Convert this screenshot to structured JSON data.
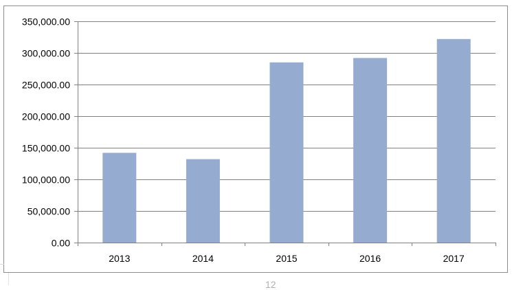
{
  "chart_data": {
    "type": "bar",
    "title": "",
    "xlabel": "",
    "ylabel": "",
    "categories": [
      "2013",
      "2014",
      "2015",
      "2016",
      "2017"
    ],
    "values": [
      142000,
      132000,
      285000,
      292000,
      322000
    ],
    "ylim": [
      0,
      350000
    ],
    "yticks": [
      0,
      50000,
      100000,
      150000,
      200000,
      250000,
      300000,
      350000
    ],
    "ytick_labels": [
      "0.00",
      "50,000.00",
      "100,000.00",
      "150,000.00",
      "200,000.00",
      "250,000.00",
      "300,000.00",
      "350,000.00"
    ],
    "grid": true,
    "legend": "none",
    "bar_color": "#95abd0",
    "grid_color": "#808080",
    "axis_color": "#808080"
  },
  "page": {
    "page_number": "12"
  }
}
